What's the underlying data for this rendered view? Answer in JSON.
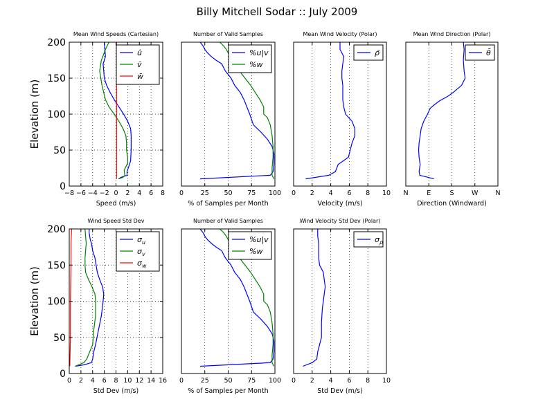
{
  "figure": {
    "title": "Billy Mitchell Sodar :: July 2009"
  },
  "chart_data": [
    {
      "type": "line",
      "title": "Mean Wind Speeds (Cartesian)",
      "xlabel": "Speed (m/s)",
      "ylabel": "Elevation (m)",
      "xlim": [
        -8,
        8
      ],
      "ylim": [
        0,
        200
      ],
      "xticks": [
        -8,
        -6,
        -4,
        -2,
        0,
        2,
        4,
        6,
        8
      ],
      "xtick_labels": [
        "−8",
        "−6",
        "−4",
        "−2",
        "0",
        "2",
        "4",
        "6",
        "8"
      ],
      "yticks": [
        0,
        50,
        100,
        150,
        200
      ],
      "grid": true,
      "legend_position": "top-right",
      "series": [
        {
          "name": "û",
          "color": "#0000ff",
          "x": [
            0.5,
            0.8,
            1.9,
            1.9,
            2.5,
            2.6,
            2.6,
            2.6,
            2.5,
            2.0,
            1.3,
            0.5,
            -0.3,
            -1.0,
            -1.6,
            -2.0,
            -2.1,
            -2.2,
            -1.8,
            -1.9,
            -2.0
          ],
          "y": [
            10,
            12,
            15,
            20,
            35,
            50,
            60,
            70,
            80,
            90,
            100,
            110,
            120,
            130,
            140,
            150,
            160,
            170,
            180,
            190,
            200
          ]
        },
        {
          "name": "v̄",
          "color": "#008000",
          "x": [
            0.4,
            1.2,
            1.5,
            1.4,
            2.0,
            2.0,
            1.8,
            1.8,
            1.7,
            1.2,
            0.5,
            -0.3,
            -1.2,
            -1.8,
            -2.1,
            -2.4,
            -2.6,
            -2.8,
            -2.5,
            -1.8,
            -1.2
          ],
          "y": [
            10,
            12,
            15,
            22,
            32,
            40,
            50,
            60,
            70,
            80,
            90,
            100,
            110,
            120,
            130,
            140,
            150,
            160,
            175,
            190,
            200
          ]
        },
        {
          "name": "w̄",
          "color": "#ff0000",
          "x": [
            0.1,
            0.1,
            0.1,
            0.1,
            0.1,
            0.1,
            0.1
          ],
          "y": [
            10,
            25,
            50,
            100,
            150,
            180,
            200
          ]
        }
      ]
    },
    {
      "type": "line",
      "title": "Number of Valid Samples",
      "xlabel": "% of Samples per Month",
      "ylabel": "",
      "xlim": [
        0,
        100
      ],
      "ylim": [
        0,
        200
      ],
      "xticks": [
        0,
        25,
        50,
        75,
        100
      ],
      "xtick_labels": [
        "0",
        "25",
        "50",
        "75",
        "100"
      ],
      "yticks": [],
      "grid": true,
      "legend_position": "top-right",
      "series": [
        {
          "name": "%u|v",
          "color": "#0000ff",
          "x": [
            20,
            95,
            98,
            99,
            99,
            97,
            92,
            85,
            77,
            73,
            70,
            67,
            63,
            57,
            53,
            47,
            43,
            37,
            32,
            28,
            25,
            23,
            20
          ],
          "y": [
            10,
            15,
            20,
            30,
            45,
            55,
            65,
            75,
            85,
            100,
            110,
            120,
            130,
            140,
            150,
            160,
            170,
            175,
            180,
            185,
            190,
            195,
            200
          ]
        },
        {
          "name": "%w",
          "color": "#008000",
          "x": [
            99,
            97,
            97,
            98,
            98,
            97,
            95,
            92,
            88,
            88,
            88,
            84,
            79,
            74,
            68,
            62,
            56,
            52,
            48,
            45,
            41
          ],
          "y": [
            10,
            15,
            25,
            40,
            55,
            70,
            85,
            95,
            100,
            105,
            110,
            120,
            130,
            140,
            150,
            160,
            170,
            180,
            190,
            195,
            200
          ]
        }
      ]
    },
    {
      "type": "line",
      "title": "Mean Wind Velocity (Polar)",
      "xlabel": "Velocity (m/s)",
      "ylabel": "",
      "xlim": [
        0,
        10
      ],
      "ylim": [
        0,
        200
      ],
      "xticks": [
        0,
        2,
        4,
        6,
        8,
        10
      ],
      "xtick_labels": [
        "0",
        "2",
        "4",
        "6",
        "8",
        "10"
      ],
      "yticks": [],
      "grid": true,
      "legend_position": "top-right",
      "series": [
        {
          "name": "ρ̄",
          "color": "#0000ff",
          "x": [
            1.3,
            3.8,
            4.5,
            4.8,
            5.9,
            6.1,
            6.3,
            6.6,
            6.6,
            6.3,
            5.6,
            5.4,
            5.3,
            5.3,
            5.3,
            5.2,
            5.2,
            5.3,
            5.4,
            5.0,
            5.0
          ],
          "y": [
            10,
            15,
            20,
            30,
            40,
            50,
            60,
            70,
            80,
            90,
            100,
            110,
            120,
            130,
            140,
            150,
            160,
            170,
            180,
            190,
            200
          ]
        }
      ]
    },
    {
      "type": "line",
      "title": "Mean Wind Direction (Polar)",
      "xlabel": "Direction (Windward)",
      "ylabel": "",
      "xlim": [
        0,
        360
      ],
      "ylim": [
        0,
        200
      ],
      "xticks": [
        0,
        90,
        180,
        270,
        360
      ],
      "xtick_labels": [
        "N",
        "E",
        "S",
        "W",
        "N"
      ],
      "yticks": [],
      "grid": true,
      "legend_position": "top-right",
      "series": [
        {
          "name": "θ̄",
          "color": "#0000ff",
          "x": [
            110,
            55,
            52,
            56,
            52,
            50,
            52,
            56,
            60,
            70,
            85,
            95,
            108,
            130,
            165,
            185,
            218,
            232,
            228,
            225,
            228,
            225
          ],
          "y": [
            10,
            15,
            20,
            30,
            40,
            50,
            60,
            70,
            80,
            90,
            100,
            108,
            112,
            118,
            125,
            130,
            140,
            150,
            160,
            175,
            190,
            200
          ]
        }
      ]
    },
    {
      "type": "line",
      "title": "Wind Speed Std Dev",
      "xlabel": "Std Dev (m/s)",
      "ylabel": "Elevation (m)",
      "xlim": [
        0,
        16
      ],
      "ylim": [
        0,
        200
      ],
      "xticks": [
        0,
        2,
        4,
        6,
        8,
        10,
        12,
        14,
        16
      ],
      "xtick_labels": [
        "0",
        "2",
        "4",
        "6",
        "8",
        "10",
        "12",
        "14",
        "16"
      ],
      "yticks": [
        0,
        50,
        100,
        150,
        200
      ],
      "grid": true,
      "legend_position": "top-right",
      "series": [
        {
          "name": "σ_u",
          "color": "#0000ff",
          "x": [
            1.0,
            2.5,
            3.8,
            4.0,
            4.2,
            4.5,
            5.0,
            5.5,
            5.8,
            5.9,
            5.7,
            5.2,
            4.8,
            4.6,
            4.4,
            4.0,
            3.8,
            3.6,
            3.5,
            3.4,
            3.4
          ],
          "y": [
            10,
            12,
            15,
            20,
            30,
            40,
            60,
            80,
            100,
            110,
            120,
            130,
            140,
            150,
            160,
            170,
            180,
            185,
            190,
            195,
            200
          ]
        },
        {
          "name": "σ_v",
          "color": "#008000",
          "x": [
            1.0,
            2.5,
            3.0,
            3.5,
            4.0,
            4.2,
            4.5,
            4.5,
            4.4,
            3.9,
            3.3,
            2.8,
            2.7,
            2.7,
            2.8,
            2.9,
            2.8,
            2.7
          ],
          "y": [
            10,
            15,
            20,
            30,
            40,
            60,
            80,
            100,
            110,
            120,
            130,
            140,
            150,
            160,
            170,
            180,
            190,
            200
          ]
        },
        {
          "name": "σ_w",
          "color": "#ff0000",
          "x": [
            0.1,
            0.2,
            0.2,
            0.3,
            0.3,
            0.4
          ],
          "y": [
            10,
            50,
            100,
            150,
            180,
            200
          ]
        }
      ]
    },
    {
      "type": "line",
      "title": "Number of Valid Samples",
      "xlabel": "% of Samples per Month",
      "ylabel": "",
      "xlim": [
        0,
        100
      ],
      "ylim": [
        0,
        200
      ],
      "xticks": [
        0,
        25,
        50,
        75,
        100
      ],
      "xtick_labels": [
        "0",
        "25",
        "50",
        "75",
        "100"
      ],
      "yticks": [],
      "grid": true,
      "legend_position": "top-right",
      "series": [
        {
          "name": "%u|v",
          "color": "#0000ff",
          "x": [
            20,
            95,
            98,
            99,
            99,
            97,
            92,
            85,
            77,
            73,
            70,
            67,
            63,
            57,
            53,
            47,
            43,
            37,
            32,
            28,
            25,
            23,
            20
          ],
          "y": [
            10,
            15,
            20,
            30,
            45,
            55,
            65,
            75,
            85,
            100,
            110,
            120,
            130,
            140,
            150,
            160,
            170,
            175,
            180,
            185,
            190,
            195,
            200
          ]
        },
        {
          "name": "%w",
          "color": "#008000",
          "x": [
            99,
            97,
            97,
            98,
            98,
            97,
            95,
            92,
            88,
            88,
            88,
            84,
            79,
            74,
            68,
            62,
            56,
            52,
            48,
            45,
            41
          ],
          "y": [
            10,
            15,
            25,
            40,
            55,
            70,
            85,
            95,
            100,
            105,
            110,
            120,
            130,
            140,
            150,
            160,
            170,
            180,
            190,
            195,
            200
          ]
        }
      ]
    },
    {
      "type": "line",
      "title": "Wind Velocity Std Dev (Polar)",
      "xlabel": "Std Dev (m/s)",
      "ylabel": "",
      "xlim": [
        0,
        10
      ],
      "ylim": [
        0,
        200
      ],
      "xticks": [
        0,
        2,
        4,
        6,
        8,
        10
      ],
      "xtick_labels": [
        "0",
        "2",
        "4",
        "6",
        "8",
        "10"
      ],
      "yticks": [],
      "grid": true,
      "legend_position": "top-right",
      "series": [
        {
          "name": "σ_ρ",
          "color": "#0000ff",
          "x": [
            1.0,
            2.0,
            2.5,
            2.6,
            2.8,
            3.0,
            3.0,
            3.1,
            3.2,
            3.3,
            3.4,
            3.3,
            3.2,
            2.8,
            2.7,
            2.7,
            2.7,
            2.6,
            2.6
          ],
          "y": [
            10,
            15,
            20,
            30,
            40,
            50,
            70,
            90,
            100,
            110,
            120,
            130,
            140,
            150,
            160,
            170,
            180,
            190,
            200
          ]
        }
      ]
    }
  ]
}
